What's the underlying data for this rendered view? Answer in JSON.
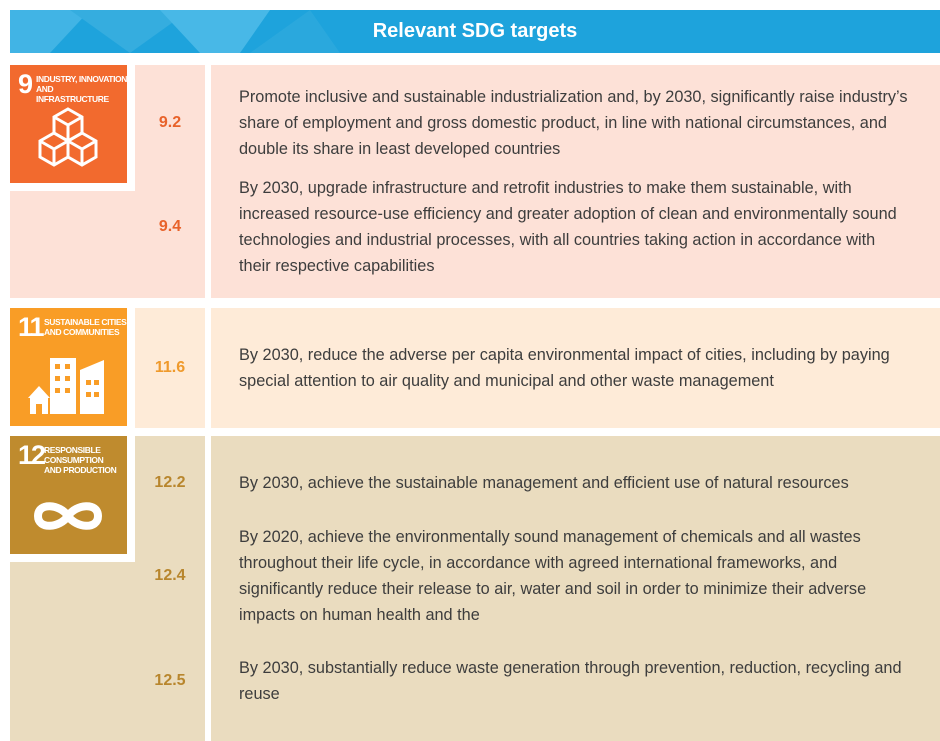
{
  "header": {
    "title": "Relevant SDG targets"
  },
  "sections": [
    {
      "goal": "9",
      "goal_label": [
        "INDUSTRY, INNOVATION",
        "AND INFRASTRUCTURE"
      ],
      "targets": [
        {
          "id": "9.2",
          "text": "Promote inclusive and sustainable industrialization and, by 2030, significantly raise industry’s share of employment and gross domestic product, in line with national circumstances, and double its share in least developed countries"
        },
        {
          "id": "9.4",
          "text": "By 2030, upgrade infrastructure and retrofit industries to make them sustainable, with increased resource-use efficiency and greater adoption of clean and environmentally sound technologies and industrial processes, with all countries taking action in accordance with their respective capabilities"
        }
      ]
    },
    {
      "goal": "11",
      "goal_label": [
        "SUSTAINABLE CITIES",
        "AND COMMUNITIES"
      ],
      "targets": [
        {
          "id": "11.6",
          "text": "By 2030, reduce the adverse per capita environmental impact of cities, including by paying special attention to air quality and municipal and other waste management"
        }
      ]
    },
    {
      "goal": "12",
      "goal_label": [
        "RESPONSIBLE",
        "CONSUMPTION",
        "AND PRODUCTION"
      ],
      "targets": [
        {
          "id": "12.2",
          "text": "By 2030, achieve the sustainable management and efficient use of natural resources"
        },
        {
          "id": "12.4",
          "text": "By 2020, achieve the environmentally sound management of chemicals and all wastes throughout their life cycle, in accordance with agreed international frameworks, and significantly reduce their release to air, water and soil in order to minimize their adverse impacts on human health and the"
        },
        {
          "id": "12.5",
          "text": "By 2030, substantially reduce waste generation through prevention, reduction, recycling and reuse"
        }
      ]
    }
  ]
}
